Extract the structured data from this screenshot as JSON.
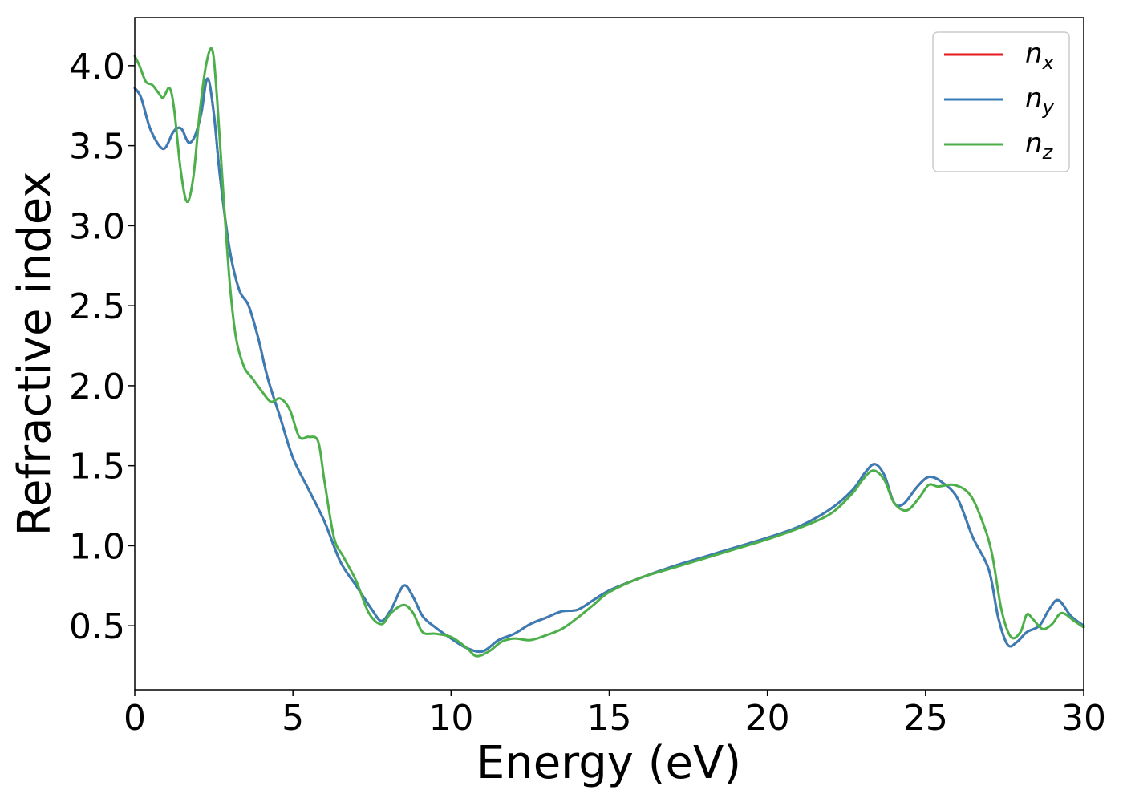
{
  "chart_data": {
    "type": "line",
    "title": "",
    "xlabel": "Energy (eV)",
    "ylabel": "Refractive index",
    "xlim": [
      0,
      30
    ],
    "ylim": [
      0.1,
      4.3
    ],
    "xticks": [
      0,
      5,
      10,
      15,
      20,
      25,
      30
    ],
    "xtick_labels": [
      "0",
      "5",
      "10",
      "15",
      "20",
      "25",
      "30"
    ],
    "yticks": [
      0.5,
      1.0,
      1.5,
      2.0,
      2.5,
      3.0,
      3.5,
      4.0
    ],
    "ytick_labels": [
      "0.5",
      "1.0",
      "1.5",
      "2.0",
      "2.5",
      "3.0",
      "3.5",
      "4.0"
    ],
    "grid": false,
    "legend_position": "top-right",
    "series": [
      {
        "name": "n_x",
        "legend_base": "n",
        "legend_sub": "x",
        "color": "#e41a1c",
        "x": [
          0,
          0.2,
          0.5,
          0.9,
          1.2,
          1.35,
          1.5,
          1.7,
          1.9,
          2.1,
          2.3,
          2.5,
          2.7,
          3.0,
          3.3,
          3.6,
          3.9,
          4.2,
          4.6,
          5.0,
          5.5,
          6.0,
          6.5,
          7.0,
          7.5,
          7.8,
          8.1,
          8.5,
          8.8,
          9.1,
          9.5,
          10.0,
          10.5,
          11.0,
          11.5,
          12.0,
          12.5,
          13.0,
          13.5,
          14.0,
          14.5,
          15.0,
          16.0,
          17.0,
          18.0,
          19.0,
          20.0,
          21.0,
          22.0,
          22.7,
          23.1,
          23.4,
          23.7,
          24.0,
          24.3,
          24.7,
          25.0,
          25.2,
          25.5,
          26.0,
          26.5,
          27.0,
          27.3,
          27.6,
          27.9,
          28.2,
          28.6,
          28.9,
          29.2,
          29.6,
          30.0
        ],
        "values": [
          3.86,
          3.8,
          3.6,
          3.48,
          3.58,
          3.61,
          3.6,
          3.52,
          3.56,
          3.7,
          3.92,
          3.7,
          3.3,
          2.85,
          2.6,
          2.5,
          2.3,
          2.05,
          1.8,
          1.55,
          1.35,
          1.15,
          0.9,
          0.75,
          0.6,
          0.53,
          0.6,
          0.75,
          0.68,
          0.56,
          0.49,
          0.42,
          0.36,
          0.34,
          0.41,
          0.45,
          0.51,
          0.55,
          0.59,
          0.6,
          0.66,
          0.72,
          0.8,
          0.87,
          0.93,
          0.99,
          1.05,
          1.12,
          1.23,
          1.35,
          1.46,
          1.51,
          1.44,
          1.27,
          1.26,
          1.36,
          1.42,
          1.43,
          1.4,
          1.3,
          1.05,
          0.85,
          0.55,
          0.38,
          0.4,
          0.46,
          0.5,
          0.6,
          0.66,
          0.56,
          0.5
        ]
      },
      {
        "name": "n_y",
        "legend_base": "n",
        "legend_sub": "y",
        "color": "#377eb8",
        "x": [
          0,
          0.2,
          0.5,
          0.9,
          1.2,
          1.35,
          1.5,
          1.7,
          1.9,
          2.1,
          2.3,
          2.5,
          2.7,
          3.0,
          3.3,
          3.6,
          3.9,
          4.2,
          4.6,
          5.0,
          5.5,
          6.0,
          6.5,
          7.0,
          7.5,
          7.8,
          8.1,
          8.5,
          8.8,
          9.1,
          9.5,
          10.0,
          10.5,
          11.0,
          11.5,
          12.0,
          12.5,
          13.0,
          13.5,
          14.0,
          14.5,
          15.0,
          16.0,
          17.0,
          18.0,
          19.0,
          20.0,
          21.0,
          22.0,
          22.7,
          23.1,
          23.4,
          23.7,
          24.0,
          24.3,
          24.7,
          25.0,
          25.2,
          25.5,
          26.0,
          26.5,
          27.0,
          27.3,
          27.6,
          27.9,
          28.2,
          28.6,
          28.9,
          29.2,
          29.6,
          30.0
        ],
        "values": [
          3.86,
          3.8,
          3.6,
          3.48,
          3.58,
          3.61,
          3.6,
          3.52,
          3.56,
          3.7,
          3.92,
          3.7,
          3.3,
          2.85,
          2.6,
          2.5,
          2.3,
          2.05,
          1.8,
          1.55,
          1.35,
          1.15,
          0.9,
          0.75,
          0.6,
          0.53,
          0.6,
          0.75,
          0.68,
          0.56,
          0.49,
          0.42,
          0.36,
          0.34,
          0.41,
          0.45,
          0.51,
          0.55,
          0.59,
          0.6,
          0.66,
          0.72,
          0.8,
          0.87,
          0.93,
          0.99,
          1.05,
          1.12,
          1.23,
          1.35,
          1.46,
          1.51,
          1.44,
          1.27,
          1.26,
          1.36,
          1.42,
          1.43,
          1.4,
          1.3,
          1.05,
          0.85,
          0.55,
          0.38,
          0.4,
          0.46,
          0.5,
          0.6,
          0.66,
          0.56,
          0.5
        ]
      },
      {
        "name": "n_z",
        "legend_base": "n",
        "legend_sub": "z",
        "color": "#4daf4a",
        "x": [
          0,
          0.15,
          0.35,
          0.55,
          0.75,
          0.9,
          1.1,
          1.25,
          1.45,
          1.65,
          1.85,
          2.05,
          2.25,
          2.45,
          2.6,
          2.8,
          3.0,
          3.2,
          3.45,
          3.7,
          4.0,
          4.3,
          4.6,
          4.9,
          5.2,
          5.5,
          5.8,
          6.0,
          6.3,
          6.6,
          7.0,
          7.4,
          7.8,
          8.1,
          8.5,
          8.8,
          9.1,
          9.5,
          10.0,
          10.5,
          10.8,
          11.2,
          11.6,
          12.0,
          12.5,
          13.0,
          13.5,
          14.0,
          14.5,
          15.0,
          16.0,
          17.0,
          18.0,
          19.0,
          20.0,
          21.0,
          22.0,
          22.7,
          23.0,
          23.35,
          23.7,
          24.0,
          24.4,
          24.8,
          25.1,
          25.4,
          25.9,
          26.4,
          26.8,
          27.1,
          27.4,
          27.7,
          28.0,
          28.2,
          28.4,
          28.7,
          29.0,
          29.3,
          29.7,
          30.0
        ],
        "values": [
          4.06,
          4.0,
          3.9,
          3.88,
          3.83,
          3.8,
          3.86,
          3.72,
          3.35,
          3.15,
          3.3,
          3.7,
          4.0,
          4.1,
          3.8,
          3.2,
          2.65,
          2.3,
          2.12,
          2.05,
          1.97,
          1.9,
          1.92,
          1.85,
          1.68,
          1.68,
          1.65,
          1.4,
          1.05,
          0.93,
          0.78,
          0.58,
          0.51,
          0.58,
          0.63,
          0.58,
          0.46,
          0.45,
          0.43,
          0.36,
          0.31,
          0.34,
          0.4,
          0.42,
          0.41,
          0.44,
          0.48,
          0.55,
          0.63,
          0.71,
          0.8,
          0.86,
          0.92,
          0.98,
          1.04,
          1.11,
          1.2,
          1.33,
          1.41,
          1.47,
          1.41,
          1.27,
          1.22,
          1.3,
          1.38,
          1.37,
          1.38,
          1.32,
          1.15,
          0.95,
          0.6,
          0.43,
          0.46,
          0.57,
          0.54,
          0.48,
          0.51,
          0.58,
          0.53,
          0.49
        ]
      }
    ]
  }
}
